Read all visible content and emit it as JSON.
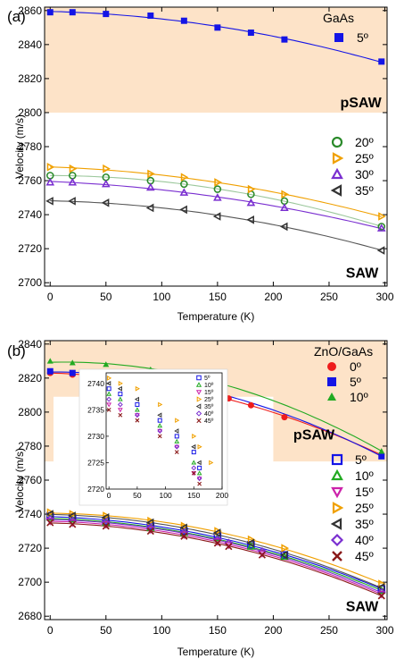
{
  "chart_data": [
    {
      "panel_label": "(a)",
      "type": "scatter",
      "xlabel": "Temperature (K)",
      "ylabel": "Velocity (m/s)",
      "xlim": [
        -5,
        302
      ],
      "ylim": [
        2698,
        2862
      ],
      "xticks": [
        0,
        50,
        100,
        150,
        200,
        250,
        300
      ],
      "yticks": [
        2700,
        2720,
        2740,
        2760,
        2780,
        2800,
        2820,
        2840,
        2860
      ],
      "shaded_region": {
        "y_from": 2800,
        "y_to": 2862,
        "color": "#fde3c8"
      },
      "annotations": [
        {
          "text": "pSAW",
          "x": 260,
          "y": 2803
        },
        {
          "text": "SAW",
          "x": 265,
          "y": 2703
        }
      ],
      "legend_title": "GaAs",
      "legend_position": "right",
      "series": [
        {
          "name": "5º",
          "marker": "square-filled",
          "color": "#1414e6",
          "line_color": "#1414e6",
          "x": [
            0,
            20,
            50,
            90,
            120,
            150,
            180,
            210,
            297
          ],
          "y": [
            2859,
            2859,
            2858,
            2857,
            2854,
            2850,
            2847,
            2843,
            2830
          ]
        },
        {
          "name": "20º",
          "marker": "circle-open",
          "color": "#2a8a2a",
          "line_color": "#9bc79b",
          "x": [
            0,
            20,
            50,
            90,
            120,
            150,
            180,
            210,
            297
          ],
          "y": [
            2763,
            2763,
            2762,
            2760,
            2758,
            2755,
            2752,
            2748,
            2733
          ]
        },
        {
          "name": "25º",
          "marker": "triangle-right-open",
          "color": "#f0a000",
          "line_color": "#f0a000",
          "x": [
            0,
            20,
            50,
            90,
            120,
            150,
            180,
            210,
            297
          ],
          "y": [
            2768,
            2767,
            2767,
            2764,
            2762,
            2759,
            2755,
            2752,
            2739
          ]
        },
        {
          "name": "30º",
          "marker": "triangle-up-open",
          "color": "#7a2fd0",
          "line_color": "#7a2fd0",
          "x": [
            0,
            20,
            50,
            90,
            120,
            150,
            180,
            210,
            297
          ],
          "y": [
            2759,
            2759,
            2758,
            2756,
            2753,
            2750,
            2747,
            2744,
            2732
          ]
        },
        {
          "name": "35º",
          "marker": "triangle-left-open",
          "color": "#333333",
          "line_color": "#555555",
          "x": [
            0,
            20,
            50,
            90,
            120,
            150,
            180,
            210,
            297
          ],
          "y": [
            2748,
            2748,
            2747,
            2744,
            2743,
            2739,
            2737,
            2733,
            2719
          ]
        }
      ]
    },
    {
      "panel_label": "(b)",
      "type": "scatter",
      "xlabel": "Temperature (K)",
      "ylabel": "Velocity (m/s)",
      "xlim": [
        -5,
        302
      ],
      "ylim": [
        2678,
        2842
      ],
      "xticks": [
        0,
        50,
        100,
        150,
        200,
        250,
        300
      ],
      "yticks": [
        2680,
        2700,
        2720,
        2740,
        2760,
        2780,
        2800,
        2820,
        2840
      ],
      "shaded_region": {
        "y_from": 2771,
        "y_to": 2842,
        "color": "#fde3c8"
      },
      "annotations": [
        {
          "text": "pSAW",
          "x": 218,
          "y": 2784
        },
        {
          "text": "SAW",
          "x": 265,
          "y": 2683
        }
      ],
      "legend_title": "ZnO/GaAs",
      "legend_position": "right",
      "series": [
        {
          "name": "0º",
          "marker": "circle-filled",
          "color": "#ee1c1c",
          "line_color": "#ee1c1c",
          "x": [
            0,
            20,
            50,
            90,
            120,
            150,
            160,
            180,
            210,
            297
          ],
          "y": [
            2823,
            2822,
            2821,
            2818,
            2813,
            2809,
            2808,
            2804,
            2797,
            2775
          ]
        },
        {
          "name": "5º",
          "marker": "square-filled",
          "color": "#1414e6",
          "line_color": "#1414e6",
          "x": [
            0,
            20,
            50,
            90,
            120,
            150,
            297
          ],
          "y": [
            2824,
            2823,
            2822,
            2819,
            2816,
            2811,
            2774
          ]
        },
        {
          "name": "10º",
          "marker": "triangle-up-filled",
          "color": "#22aa22",
          "line_color": "#22aa22",
          "x": [
            0,
            20,
            50,
            90,
            120,
            150,
            297
          ],
          "y": [
            2830,
            2829,
            2828,
            2825,
            2822,
            2818,
            2777
          ]
        },
        {
          "name": "5º",
          "marker": "square-open",
          "color": "#1414e6",
          "line_color": "#1414e6",
          "x": [
            0,
            20,
            50,
            90,
            120,
            150,
            180,
            210,
            297
          ],
          "y": [
            2739,
            2738,
            2736,
            2733,
            2730,
            2727,
            2722,
            2716,
            2696
          ]
        },
        {
          "name": "10º",
          "marker": "triangle-up-open",
          "color": "#22aa22",
          "line_color": "#22aa22",
          "x": [
            0,
            20,
            50,
            90,
            120,
            150,
            180,
            210,
            297
          ],
          "y": [
            2738,
            2737,
            2735,
            2732,
            2729,
            2726,
            2721,
            2715,
            2695
          ]
        },
        {
          "name": "15º",
          "marker": "triangle-down-open",
          "color": "#cc22aa",
          "line_color": "#cc22aa",
          "x": [
            0,
            20,
            50,
            90,
            120,
            150,
            160,
            190,
            297
          ],
          "y": [
            2736,
            2735,
            2734,
            2731,
            2728,
            2724,
            2722,
            2717,
            2693
          ]
        },
        {
          "name": "25º",
          "marker": "triangle-right-open",
          "color": "#f0a000",
          "line_color": "#f0a000",
          "x": [
            0,
            20,
            50,
            90,
            120,
            150,
            180,
            210,
            297
          ],
          "y": [
            2741,
            2740,
            2739,
            2736,
            2733,
            2730,
            2725,
            2720,
            2699
          ]
        },
        {
          "name": "35º",
          "marker": "triangle-left-open",
          "color": "#333333",
          "line_color": "#555555",
          "x": [
            0,
            20,
            50,
            90,
            120,
            150,
            180,
            210,
            297
          ],
          "y": [
            2740,
            2739,
            2738,
            2735,
            2732,
            2729,
            2723,
            2716,
            2697
          ]
        },
        {
          "name": "40º",
          "marker": "diamond-open",
          "color": "#7a2fd0",
          "line_color": "#7a2fd0",
          "x": [
            0,
            20,
            50,
            90,
            120,
            150,
            160,
            190,
            297
          ],
          "y": [
            2737,
            2736,
            2735,
            2732,
            2729,
            2725,
            2723,
            2718,
            2694
          ]
        },
        {
          "name": "45º",
          "marker": "x-cross",
          "color": "#8b1a1a",
          "line_color": "#8b1a1a",
          "x": [
            0,
            20,
            50,
            90,
            120,
            150,
            160,
            190,
            297
          ],
          "y": [
            2735,
            2734,
            2733,
            2730,
            2727,
            2723,
            2721,
            2716,
            2692
          ]
        }
      ],
      "inset": {
        "xlim": [
          -5,
          200
        ],
        "ylim": [
          2720,
          2742
        ],
        "xticks": [
          0,
          50,
          100,
          150,
          200
        ],
        "yticks": [
          2720,
          2725,
          2730,
          2735,
          2740
        ],
        "legend": [
          "5º",
          "10º",
          "15º",
          "25º",
          "35º",
          "40º",
          "45º"
        ],
        "series": [
          {
            "marker": "square-open",
            "color": "#1414e6",
            "x": [
              0,
              20,
              50,
              90,
              120,
              150,
              160
            ],
            "y": [
              2739,
              2738,
              2736,
              2733,
              2730,
              2727,
              2724
            ]
          },
          {
            "marker": "triangle-up-open",
            "color": "#22aa22",
            "x": [
              0,
              20,
              50,
              90,
              120,
              150,
              160
            ],
            "y": [
              2738,
              2737,
              2735,
              2732,
              2729,
              2725,
              2723
            ]
          },
          {
            "marker": "triangle-down-open",
            "color": "#cc22aa",
            "x": [
              0,
              20,
              50,
              90,
              120,
              150,
              160
            ],
            "y": [
              2736,
              2735,
              2734,
              2731,
              2728,
              2723,
              2722
            ]
          },
          {
            "marker": "triangle-right-open",
            "color": "#f0a000",
            "x": [
              0,
              20,
              50,
              90,
              120,
              150,
              160,
              180
            ],
            "y": [
              2741,
              2740,
              2739,
              2736,
              2733,
              2730,
              2728,
              2725
            ]
          },
          {
            "marker": "triangle-left-open",
            "color": "#333333",
            "x": [
              0,
              20,
              50,
              90,
              120,
              150,
              160
            ],
            "y": [
              2740,
              2739,
              2737,
              2734,
              2731,
              2728,
              2725
            ]
          },
          {
            "marker": "diamond-open",
            "color": "#7a2fd0",
            "x": [
              0,
              20,
              50,
              90,
              120,
              150,
              160
            ],
            "y": [
              2737,
              2736,
              2734,
              2731,
              2728,
              2724,
              2722
            ]
          },
          {
            "marker": "x-cross",
            "color": "#8b1a1a",
            "x": [
              0,
              20,
              50,
              90,
              120,
              150,
              160
            ],
            "y": [
              2735,
              2734,
              2733,
              2730,
              2727,
              2723,
              2721
            ]
          }
        ]
      }
    }
  ]
}
